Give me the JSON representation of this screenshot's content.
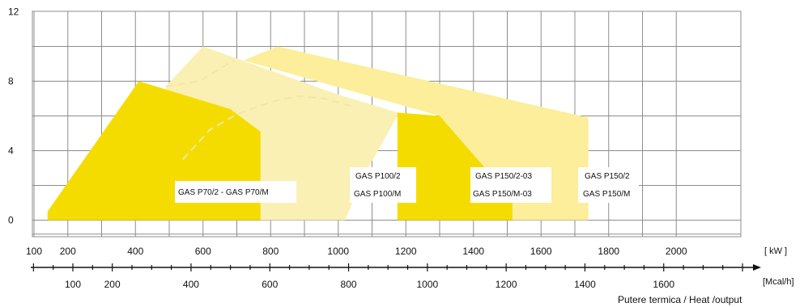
{
  "chart_data": {
    "type": "area",
    "title": "",
    "xlabel": "Putere termica / Heat /output",
    "ylabel": "",
    "xlim": [
      0,
      2000
    ],
    "ylim": [
      -0.8,
      12
    ],
    "grid": true,
    "y_ticks": [
      "0",
      "4",
      "8",
      "12"
    ],
    "y_tick_values": [
      0,
      4,
      8,
      12
    ],
    "x_ticks_kw": [
      "100",
      "200",
      "400",
      "600",
      "800",
      "1000",
      "1200",
      "1400",
      "1600",
      "1800",
      "2000"
    ],
    "x_tick_values_kw": [
      100,
      200,
      400,
      600,
      800,
      1000,
      1200,
      1400,
      1600,
      1800,
      2000
    ],
    "x_unit_kw": "[ kW ]",
    "x_ticks_mcal": [
      "100",
      "200",
      "400",
      "600",
      "800",
      "1000",
      "1200",
      "1400",
      "1600"
    ],
    "x_tick_values_mcal": [
      100,
      200,
      400,
      600,
      800,
      1000,
      1200,
      1400,
      1600
    ],
    "x_unit_mcal": "[Mcal/h]",
    "series": [
      {
        "name": "GAS P100/2 / GAS P100/M",
        "labels": [
          "GAS P100/2",
          "GAS P100/M"
        ],
        "color": "#fbf0b4",
        "points": [
          [
            490,
            0
          ],
          [
            1020,
            0
          ],
          [
            1080,
            2.7
          ],
          [
            1175,
            6.0
          ],
          [
            1175,
            6.2
          ],
          [
            990,
            7.3
          ],
          [
            600,
            10.0
          ],
          [
            490,
            7.7
          ]
        ]
      },
      {
        "name": "GAS P150/2 / GAS P150/M",
        "labels": [
          "GAS P150/2",
          "GAS P150/M"
        ],
        "color": "#fcee9a",
        "points": [
          [
            1510,
            0
          ],
          [
            1740,
            0
          ],
          [
            1740,
            5.9
          ],
          [
            820,
            10.0
          ],
          [
            720,
            9.2
          ],
          [
            1300,
            6.0
          ],
          [
            1310,
            0
          ]
        ]
      },
      {
        "name": "GAS P150/2-03 / GAS P150/M-03",
        "labels": [
          "GAS P150/2-03",
          "GAS P150/M-03"
        ],
        "color": "#f5dc00",
        "points": [
          [
            1175,
            0
          ],
          [
            1515,
            0
          ],
          [
            1515,
            1.2
          ],
          [
            1300,
            6.0
          ],
          [
            1175,
            6.2
          ]
        ]
      },
      {
        "name": "GAS P70/2 - GAS P70/M",
        "labels": [
          "GAS P70/2 - GAS P70/M"
        ],
        "color": "#f5dc00",
        "points": [
          [
            140,
            0
          ],
          [
            770,
            0
          ],
          [
            770,
            5.1
          ],
          [
            680,
            6.4
          ],
          [
            410,
            8.0
          ],
          [
            140,
            0.5
          ]
        ]
      }
    ],
    "dashed_curves": [
      {
        "color": "#f2e7a0",
        "points": [
          [
            490,
            7.7
          ],
          [
            590,
            8.0
          ],
          [
            690,
            9.2
          ]
        ]
      },
      {
        "color": "#f2e7a0",
        "points": [
          [
            540,
            3.5
          ],
          [
            620,
            5.2
          ],
          [
            700,
            6.1
          ],
          [
            800,
            6.8
          ],
          [
            880,
            7.15
          ],
          [
            960,
            7.0
          ],
          [
            1050,
            6.5
          ]
        ]
      }
    ]
  }
}
